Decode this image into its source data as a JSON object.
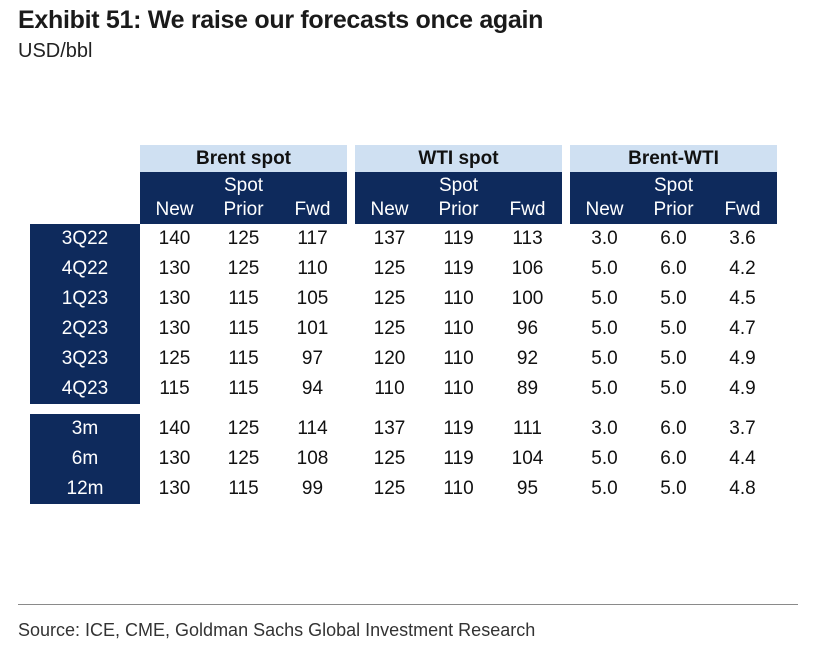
{
  "title": "Exhibit 51: We raise our forecasts once again",
  "subtitle": "USD/bbl",
  "source": "Source: ICE, CME, Goldman Sachs Global Investment Research",
  "chart_data": {
    "type": "table",
    "title": "Exhibit 51: We raise our forecasts once again",
    "units": "USD/bbl",
    "groups": [
      "Brent spot",
      "WTI spot",
      "Brent-WTI"
    ],
    "columns": [
      {
        "line1": "",
        "line2": "New"
      },
      {
        "line1": "Spot",
        "line2": "Prior"
      },
      {
        "line1": "",
        "line2": "Fwd"
      }
    ],
    "rows": [
      {
        "label": "3Q22",
        "values": [
          "140",
          "125",
          "117",
          "137",
          "119",
          "113",
          "3.0",
          "6.0",
          "3.6"
        ]
      },
      {
        "label": "4Q22",
        "values": [
          "130",
          "125",
          "110",
          "125",
          "119",
          "106",
          "5.0",
          "6.0",
          "4.2"
        ]
      },
      {
        "label": "1Q23",
        "values": [
          "130",
          "115",
          "105",
          "125",
          "110",
          "100",
          "5.0",
          "5.0",
          "4.5"
        ]
      },
      {
        "label": "2Q23",
        "values": [
          "130",
          "115",
          "101",
          "125",
          "110",
          "96",
          "5.0",
          "5.0",
          "4.7"
        ]
      },
      {
        "label": "3Q23",
        "values": [
          "125",
          "115",
          "97",
          "120",
          "110",
          "92",
          "5.0",
          "5.0",
          "4.9"
        ]
      },
      {
        "label": "4Q23",
        "values": [
          "115",
          "115",
          "94",
          "110",
          "110",
          "89",
          "5.0",
          "5.0",
          "4.9"
        ]
      },
      {
        "label": "3m",
        "values": [
          "140",
          "125",
          "114",
          "137",
          "119",
          "111",
          "3.0",
          "6.0",
          "3.7"
        ]
      },
      {
        "label": "6m",
        "values": [
          "130",
          "125",
          "108",
          "125",
          "119",
          "104",
          "5.0",
          "6.0",
          "4.4"
        ]
      },
      {
        "label": "12m",
        "values": [
          "130",
          "115",
          "99",
          "125",
          "110",
          "95",
          "5.0",
          "5.0",
          "4.8"
        ]
      }
    ],
    "row_blocks": [
      6,
      3
    ]
  },
  "colors": {
    "header_dark": "#0e2a5c",
    "header_light": "#cfe0f2"
  }
}
